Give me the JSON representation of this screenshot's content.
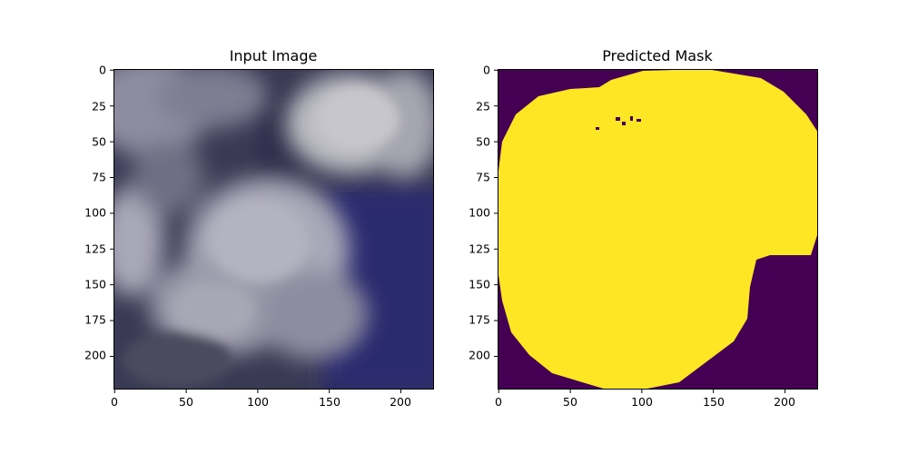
{
  "figure": {
    "panels": [
      {
        "title": "Input Image",
        "content": "satellite-cloud-image",
        "xticks": [
          "0",
          "50",
          "100",
          "150",
          "200"
        ],
        "yticks": [
          "0",
          "25",
          "50",
          "75",
          "100",
          "125",
          "150",
          "175",
          "200"
        ]
      },
      {
        "title": "Predicted Mask",
        "content": "segmentation-mask",
        "xticks": [
          "0",
          "50",
          "100",
          "150",
          "200"
        ],
        "yticks": [
          "0",
          "25",
          "50",
          "75",
          "100",
          "125",
          "150",
          "175",
          "200"
        ]
      }
    ]
  },
  "colors": {
    "mask_background": "#440154",
    "mask_foreground": "#fde725",
    "image_dark": "#2b2a52",
    "image_cloud": "#b9b8c4"
  }
}
